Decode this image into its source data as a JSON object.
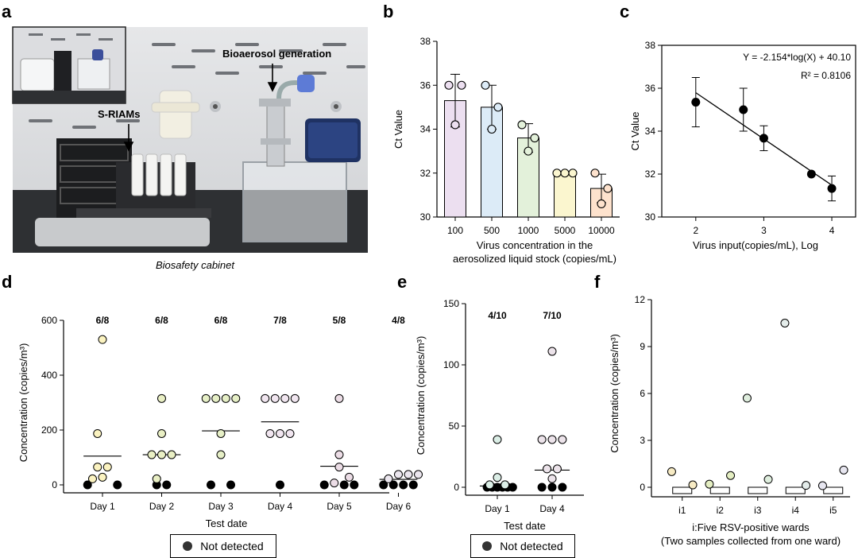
{
  "panels": {
    "a": {
      "letter": "a",
      "labels": {
        "bioaerosol": "Bioaerosol generation",
        "sriams": "S-RIAMs"
      },
      "caption": "Biosafety cabinet"
    },
    "b": {
      "letter": "b"
    },
    "c": {
      "letter": "c"
    },
    "d": {
      "letter": "d",
      "legend": "Not detected"
    },
    "e": {
      "letter": "e",
      "legend": "Not detected"
    },
    "f": {
      "letter": "f"
    }
  },
  "chart_data": [
    {
      "id": "b",
      "type": "bar",
      "categories": [
        "100",
        "500",
        "1000",
        "5000",
        "10000"
      ],
      "values": [
        35.3,
        35.0,
        33.6,
        32.0,
        31.3
      ],
      "errors": [
        1.2,
        1.0,
        0.65,
        0.0,
        0.65
      ],
      "points": [
        [
          36,
          36,
          34.2
        ],
        [
          36,
          35,
          34
        ],
        [
          34.2,
          33.6,
          33
        ]
      ],
      "points_rest": [
        [
          32,
          32,
          32
        ],
        [
          32,
          31.3,
          30.6
        ]
      ],
      "bar_colors": [
        "#ecdff0",
        "#dcebf7",
        "#e3f1da",
        "#fbf6cf",
        "#fde2cd"
      ],
      "ylabel": "Ct Value",
      "xlabel_line1": "Virus concentration in the",
      "xlabel_line2": "aerosolized liquid stock (copies/mL)",
      "ylim": [
        30,
        38
      ],
      "yticks": [
        "30",
        "32",
        "34",
        "36",
        "38"
      ]
    },
    {
      "id": "c",
      "type": "scatter",
      "x": [
        2,
        2.7,
        3,
        3.7,
        4
      ],
      "y": [
        35.35,
        35.0,
        33.67,
        32.0,
        31.33
      ],
      "errors": [
        1.15,
        1.0,
        0.58,
        0.0,
        0.58
      ],
      "fit": {
        "slope": -2.154,
        "intercept": 40.1
      },
      "equation": "Y = -2.154*log(X) + 40.10",
      "r2": "R² = 0.8106",
      "xlabel": "Virus input(copies/mL), Log",
      "ylabel": "Ct Value",
      "xlim": [
        1.5,
        4.35
      ],
      "ylim": [
        30,
        38
      ],
      "xticks": [
        "2",
        "3",
        "4"
      ],
      "yticks": [
        "30",
        "32",
        "34",
        "36",
        "38"
      ]
    },
    {
      "id": "d",
      "type": "scatter",
      "categories": [
        "Day 1",
        "Day 2",
        "Day 3",
        "Day 4",
        "Day 5",
        "Day 6"
      ],
      "ratios": [
        "6/8",
        "6/8",
        "6/8",
        "7/8",
        "5/8",
        "4/8"
      ],
      "colors": [
        "#fbf3c0",
        "#e9efc4",
        "#e6efc6",
        "#f1e6f0",
        "#ecdde6",
        "#ebe6ee"
      ],
      "groups": [
        {
          "points": [
            [
              -0.27,
              0
            ],
            [
              0.27,
              0
            ],
            [
              0.0,
              530
            ],
            [
              -0.09,
              187
            ],
            [
              -0.09,
              65
            ],
            [
              0.09,
              65
            ],
            [
              -0.18,
              22
            ],
            [
              0.0,
              28
            ]
          ],
          "median": 105
        },
        {
          "points": [
            [
              -0.09,
              0
            ],
            [
              0.09,
              0
            ],
            [
              0.0,
              315
            ],
            [
              0.0,
              187
            ],
            [
              -0.18,
              110
            ],
            [
              0.0,
              110
            ],
            [
              0.18,
              110
            ],
            [
              -0.09,
              22
            ]
          ],
          "median": 110
        },
        {
          "points": [
            [
              -0.18,
              0
            ],
            [
              0.18,
              0
            ],
            [
              -0.27,
              315
            ],
            [
              -0.09,
              315
            ],
            [
              0.09,
              315
            ],
            [
              0.27,
              315
            ],
            [
              0.0,
              187
            ],
            [
              0.0,
              110
            ]
          ],
          "median": 197
        },
        {
          "points": [
            [
              0.0,
              0
            ],
            [
              -0.27,
              315
            ],
            [
              -0.09,
              315
            ],
            [
              0.09,
              315
            ],
            [
              0.27,
              315
            ],
            [
              -0.18,
              187
            ],
            [
              0.0,
              187
            ],
            [
              0.18,
              187
            ]
          ],
          "median": 230
        },
        {
          "points": [
            [
              -0.27,
              0
            ],
            [
              0.09,
              0
            ],
            [
              0.27,
              0
            ],
            [
              -0.09,
              7
            ],
            [
              0.0,
              315
            ],
            [
              0.0,
              110
            ],
            [
              0.0,
              65
            ],
            [
              0.18,
              28
            ]
          ],
          "median": 68
        },
        {
          "points": [
            [
              -0.27,
              0
            ],
            [
              -0.09,
              0
            ],
            [
              0.09,
              0
            ],
            [
              0.27,
              0
            ],
            [
              -0.18,
              22
            ],
            [
              0.0,
              38
            ],
            [
              0.18,
              38
            ],
            [
              0.36,
              38
            ]
          ],
          "median": 20
        }
      ],
      "ylabel": "Concentration (copies/m³)",
      "xlabel": "Test date",
      "ylim": [
        0,
        600
      ],
      "yticks": [
        "0",
        "200",
        "400",
        "600"
      ]
    },
    {
      "id": "e",
      "type": "scatter",
      "categories": [
        "Day 1",
        "Day 4"
      ],
      "ratios": [
        "4/10",
        "7/10"
      ],
      "colors": [
        "#dbeee6",
        "#ece3ea"
      ],
      "groups": [
        {
          "points": [
            [
              -0.2,
              0
            ],
            [
              -0.1,
              0
            ],
            [
              0.0,
              0
            ],
            [
              0.1,
              0
            ],
            [
              0.2,
              0
            ],
            [
              0.3,
              0
            ],
            [
              0.0,
              39
            ],
            [
              0.0,
              8
            ],
            [
              -0.15,
              2
            ],
            [
              0.15,
              2
            ]
          ],
          "median": 1
        },
        {
          "points": [
            [
              -0.2,
              0
            ],
            [
              0.0,
              0
            ],
            [
              0.2,
              0
            ],
            [
              0.0,
              111
            ],
            [
              -0.2,
              39
            ],
            [
              0.0,
              39
            ],
            [
              0.2,
              39
            ],
            [
              -0.1,
              15
            ],
            [
              0.1,
              15
            ],
            [
              0.0,
              7
            ]
          ],
          "median": 14
        }
      ],
      "ylabel": "Concentration (copies/m³)",
      "xlabel": "Test date",
      "ylim": [
        0,
        150
      ],
      "yticks": [
        "0",
        "50",
        "100",
        "150"
      ]
    },
    {
      "id": "f",
      "type": "scatter",
      "categories": [
        "i1",
        "i2",
        "i3",
        "i4",
        "i5"
      ],
      "points": [
        [
          0.72,
          1.0,
          "#f7ebc4"
        ],
        [
          1.28,
          0.15,
          "#f7ebc4"
        ],
        [
          1.72,
          0.2,
          "#e4eec2"
        ],
        [
          2.28,
          0.75,
          "#e4eec2"
        ],
        [
          2.72,
          5.7,
          "#dfeede"
        ],
        [
          3.28,
          0.5,
          "#dfeede"
        ],
        [
          3.72,
          10.5,
          "#e4ecea"
        ],
        [
          4.28,
          0.12,
          "#e4ecea"
        ],
        [
          4.72,
          0.1,
          "#e7e6f0"
        ],
        [
          5.28,
          1.1,
          "#e7e6f0"
        ]
      ],
      "ylabel": "Concentration (copies/m³)",
      "xlabel_line1": "i:Five RSV-positive wards",
      "xlabel_line2": "(Two samples collected from one ward)",
      "ylim": [
        0,
        12
      ],
      "yticks": [
        "0",
        "3",
        "6",
        "9",
        "12"
      ]
    }
  ]
}
